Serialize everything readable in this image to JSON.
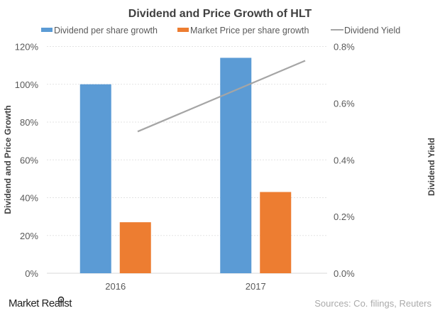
{
  "chart_data": {
    "type": "bar",
    "title": "Dividend  and Price Growth of HLT",
    "categories": [
      "2016",
      "2017"
    ],
    "series": [
      {
        "name": "Dividend per share growth",
        "type": "bar",
        "axis": "left",
        "color": "#5B9BD5",
        "values": [
          100,
          114
        ]
      },
      {
        "name": "Market Price per share growth",
        "type": "bar",
        "axis": "left",
        "color": "#ED7D31",
        "values": [
          27,
          43
        ]
      },
      {
        "name": "Dividend Yield",
        "type": "line",
        "axis": "right",
        "color": "#A5A5A5",
        "values": [
          0.5,
          0.75
        ]
      }
    ],
    "ylabel": "Dividend and Price Growth",
    "y2label": "Dividend Yield",
    "ylim": [
      0,
      120
    ],
    "y2lim": [
      0,
      0.8
    ],
    "yticks": [
      "0%",
      "20%",
      "40%",
      "60%",
      "80%",
      "100%",
      "120%"
    ],
    "y2ticks": [
      "0.0%",
      "0.2%",
      "0.4%",
      "0.6%",
      "0.8%"
    ],
    "grid": true,
    "legend": "top"
  },
  "footer": {
    "logo": "Market Realist",
    "source": "Sources: Co. filings, Reuters"
  }
}
